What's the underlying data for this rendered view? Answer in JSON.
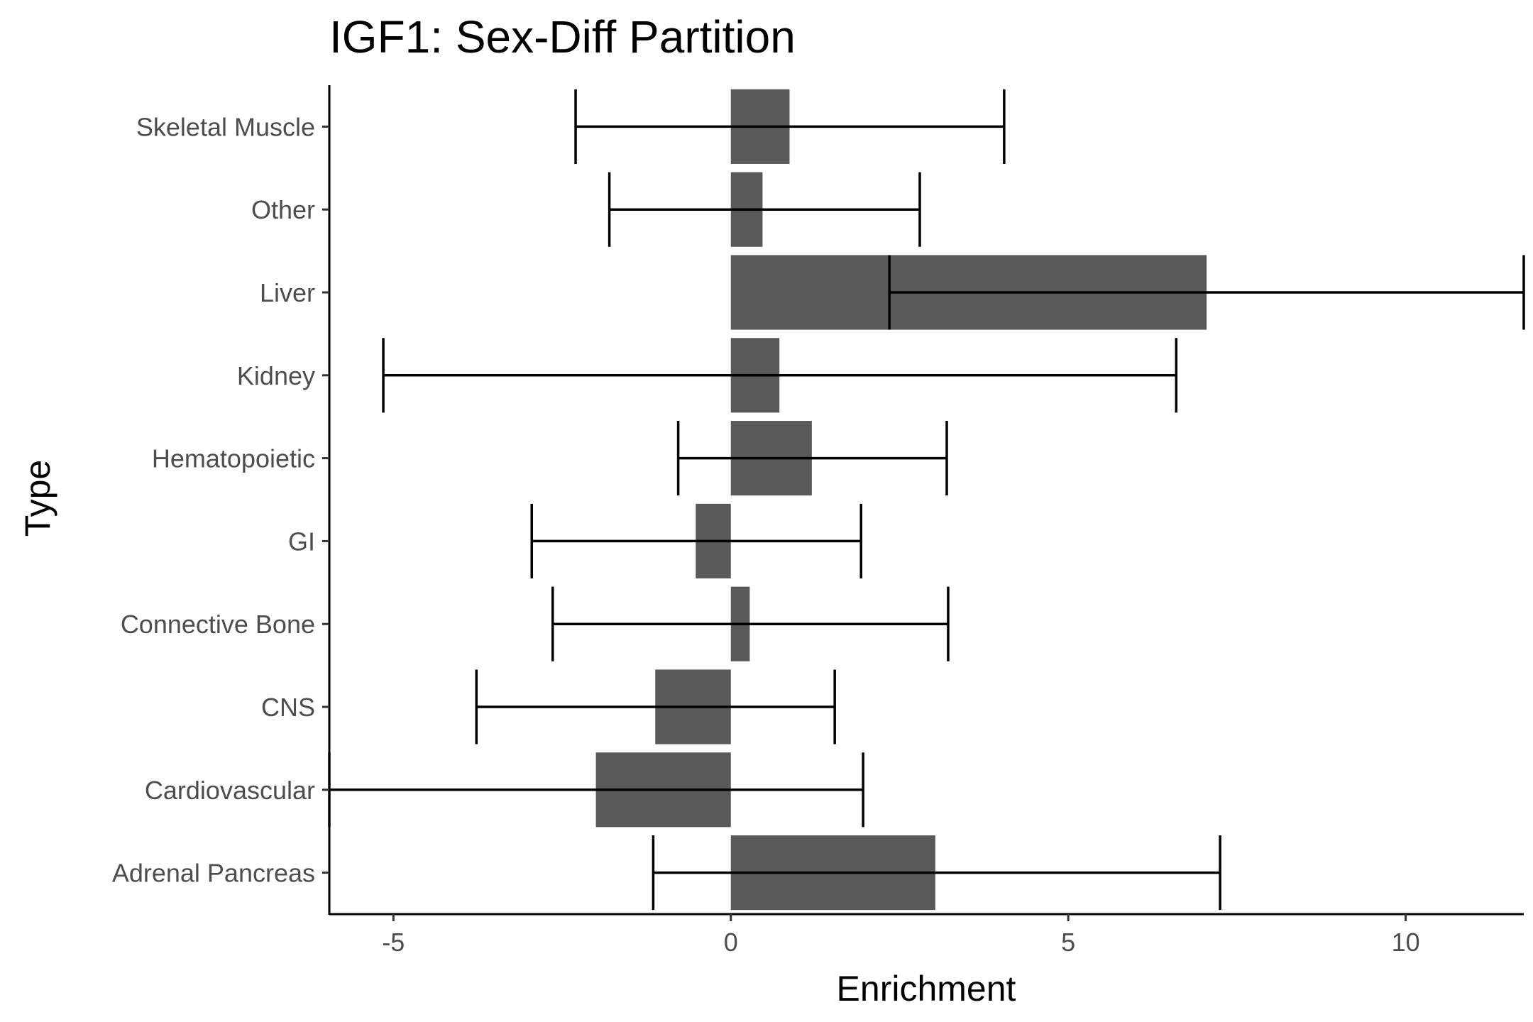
{
  "chart_data": {
    "type": "bar",
    "orientation": "horizontal",
    "title": "IGF1: Sex-Diff Partition",
    "xlabel": "Enrichment",
    "ylabel": "Type",
    "xlim": [
      -5.95,
      11.75
    ],
    "xticks": [
      -5,
      0,
      5,
      10
    ],
    "categories": [
      "Adrenal Pancreas",
      "Cardiovascular",
      "CNS",
      "Connective Bone",
      "GI",
      "Hematopoietic",
      "Kidney",
      "Liver",
      "Other",
      "Skeletal Muscle"
    ],
    "values": [
      3.03,
      -2.0,
      -1.12,
      0.28,
      -0.52,
      1.2,
      0.72,
      7.05,
      0.47,
      0.87
    ],
    "error_low": [
      -1.15,
      -6.0,
      -3.77,
      -2.64,
      -2.95,
      -0.78,
      -5.15,
      2.35,
      -1.8,
      -2.3
    ],
    "error_high": [
      7.25,
      1.96,
      1.54,
      3.22,
      1.93,
      3.2,
      6.6,
      11.75,
      2.8,
      4.05
    ],
    "bar_color": "#595959",
    "grid": false,
    "legend": "none"
  }
}
